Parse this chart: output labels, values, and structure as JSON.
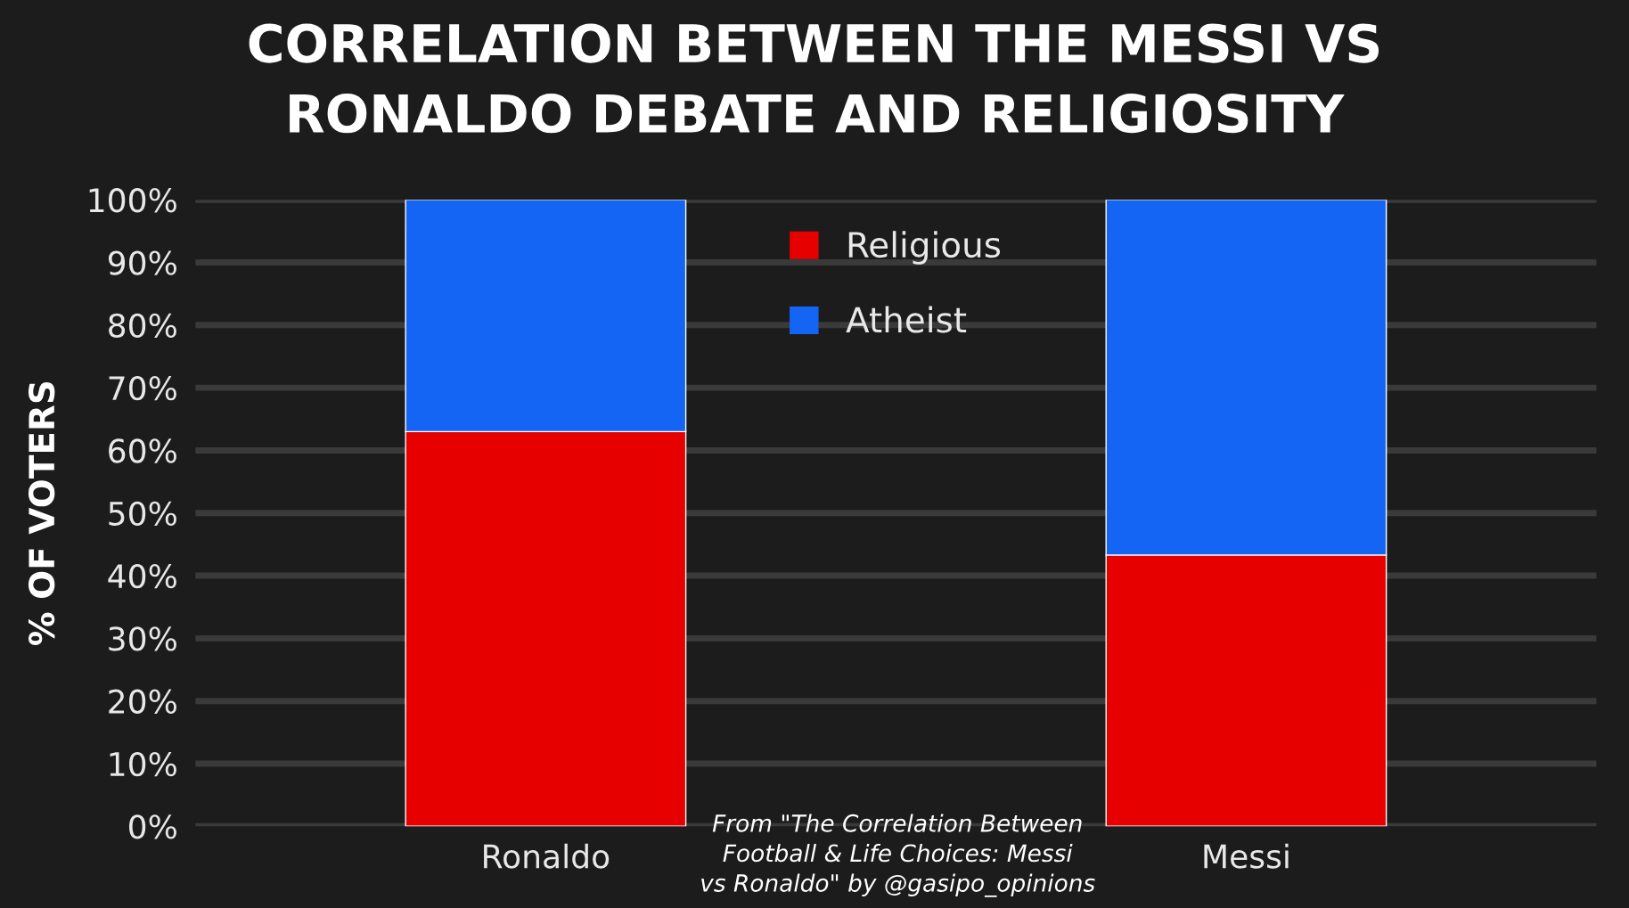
{
  "chart_data": {
    "type": "bar",
    "title": "CORRELATION BETWEEN THE MESSI VS\nRONALDO DEBATE AND RELIGIOSITY",
    "ylabel": "% OF VOTERS",
    "categories": [
      "Ronaldo",
      "Messi"
    ],
    "stacked": true,
    "series": [
      {
        "name": "Religious",
        "color": "#e60000",
        "values": [
          63,
          43.3
        ]
      },
      {
        "name": "Atheist",
        "color": "#1565f5",
        "values": [
          37,
          56.7
        ]
      }
    ],
    "ylim": [
      0,
      100
    ],
    "yticks": [
      {
        "value": 0,
        "label": "0%"
      },
      {
        "value": 10,
        "label": "10%"
      },
      {
        "value": 20,
        "label": "20%"
      },
      {
        "value": 30,
        "label": "30%"
      },
      {
        "value": 40,
        "label": "40%"
      },
      {
        "value": 50,
        "label": "50%"
      },
      {
        "value": 60,
        "label": "60%"
      },
      {
        "value": 70,
        "label": "70%"
      },
      {
        "value": 80,
        "label": "80%"
      },
      {
        "value": 90,
        "label": "90%"
      },
      {
        "value": 100,
        "label": "100%"
      }
    ],
    "grid": "y",
    "legend": "top",
    "annotations": [
      "From \"The Correlation Between\nFootball & Life Choices: Messi\nvs Ronaldo\" by @gasipo_opinions"
    ]
  }
}
